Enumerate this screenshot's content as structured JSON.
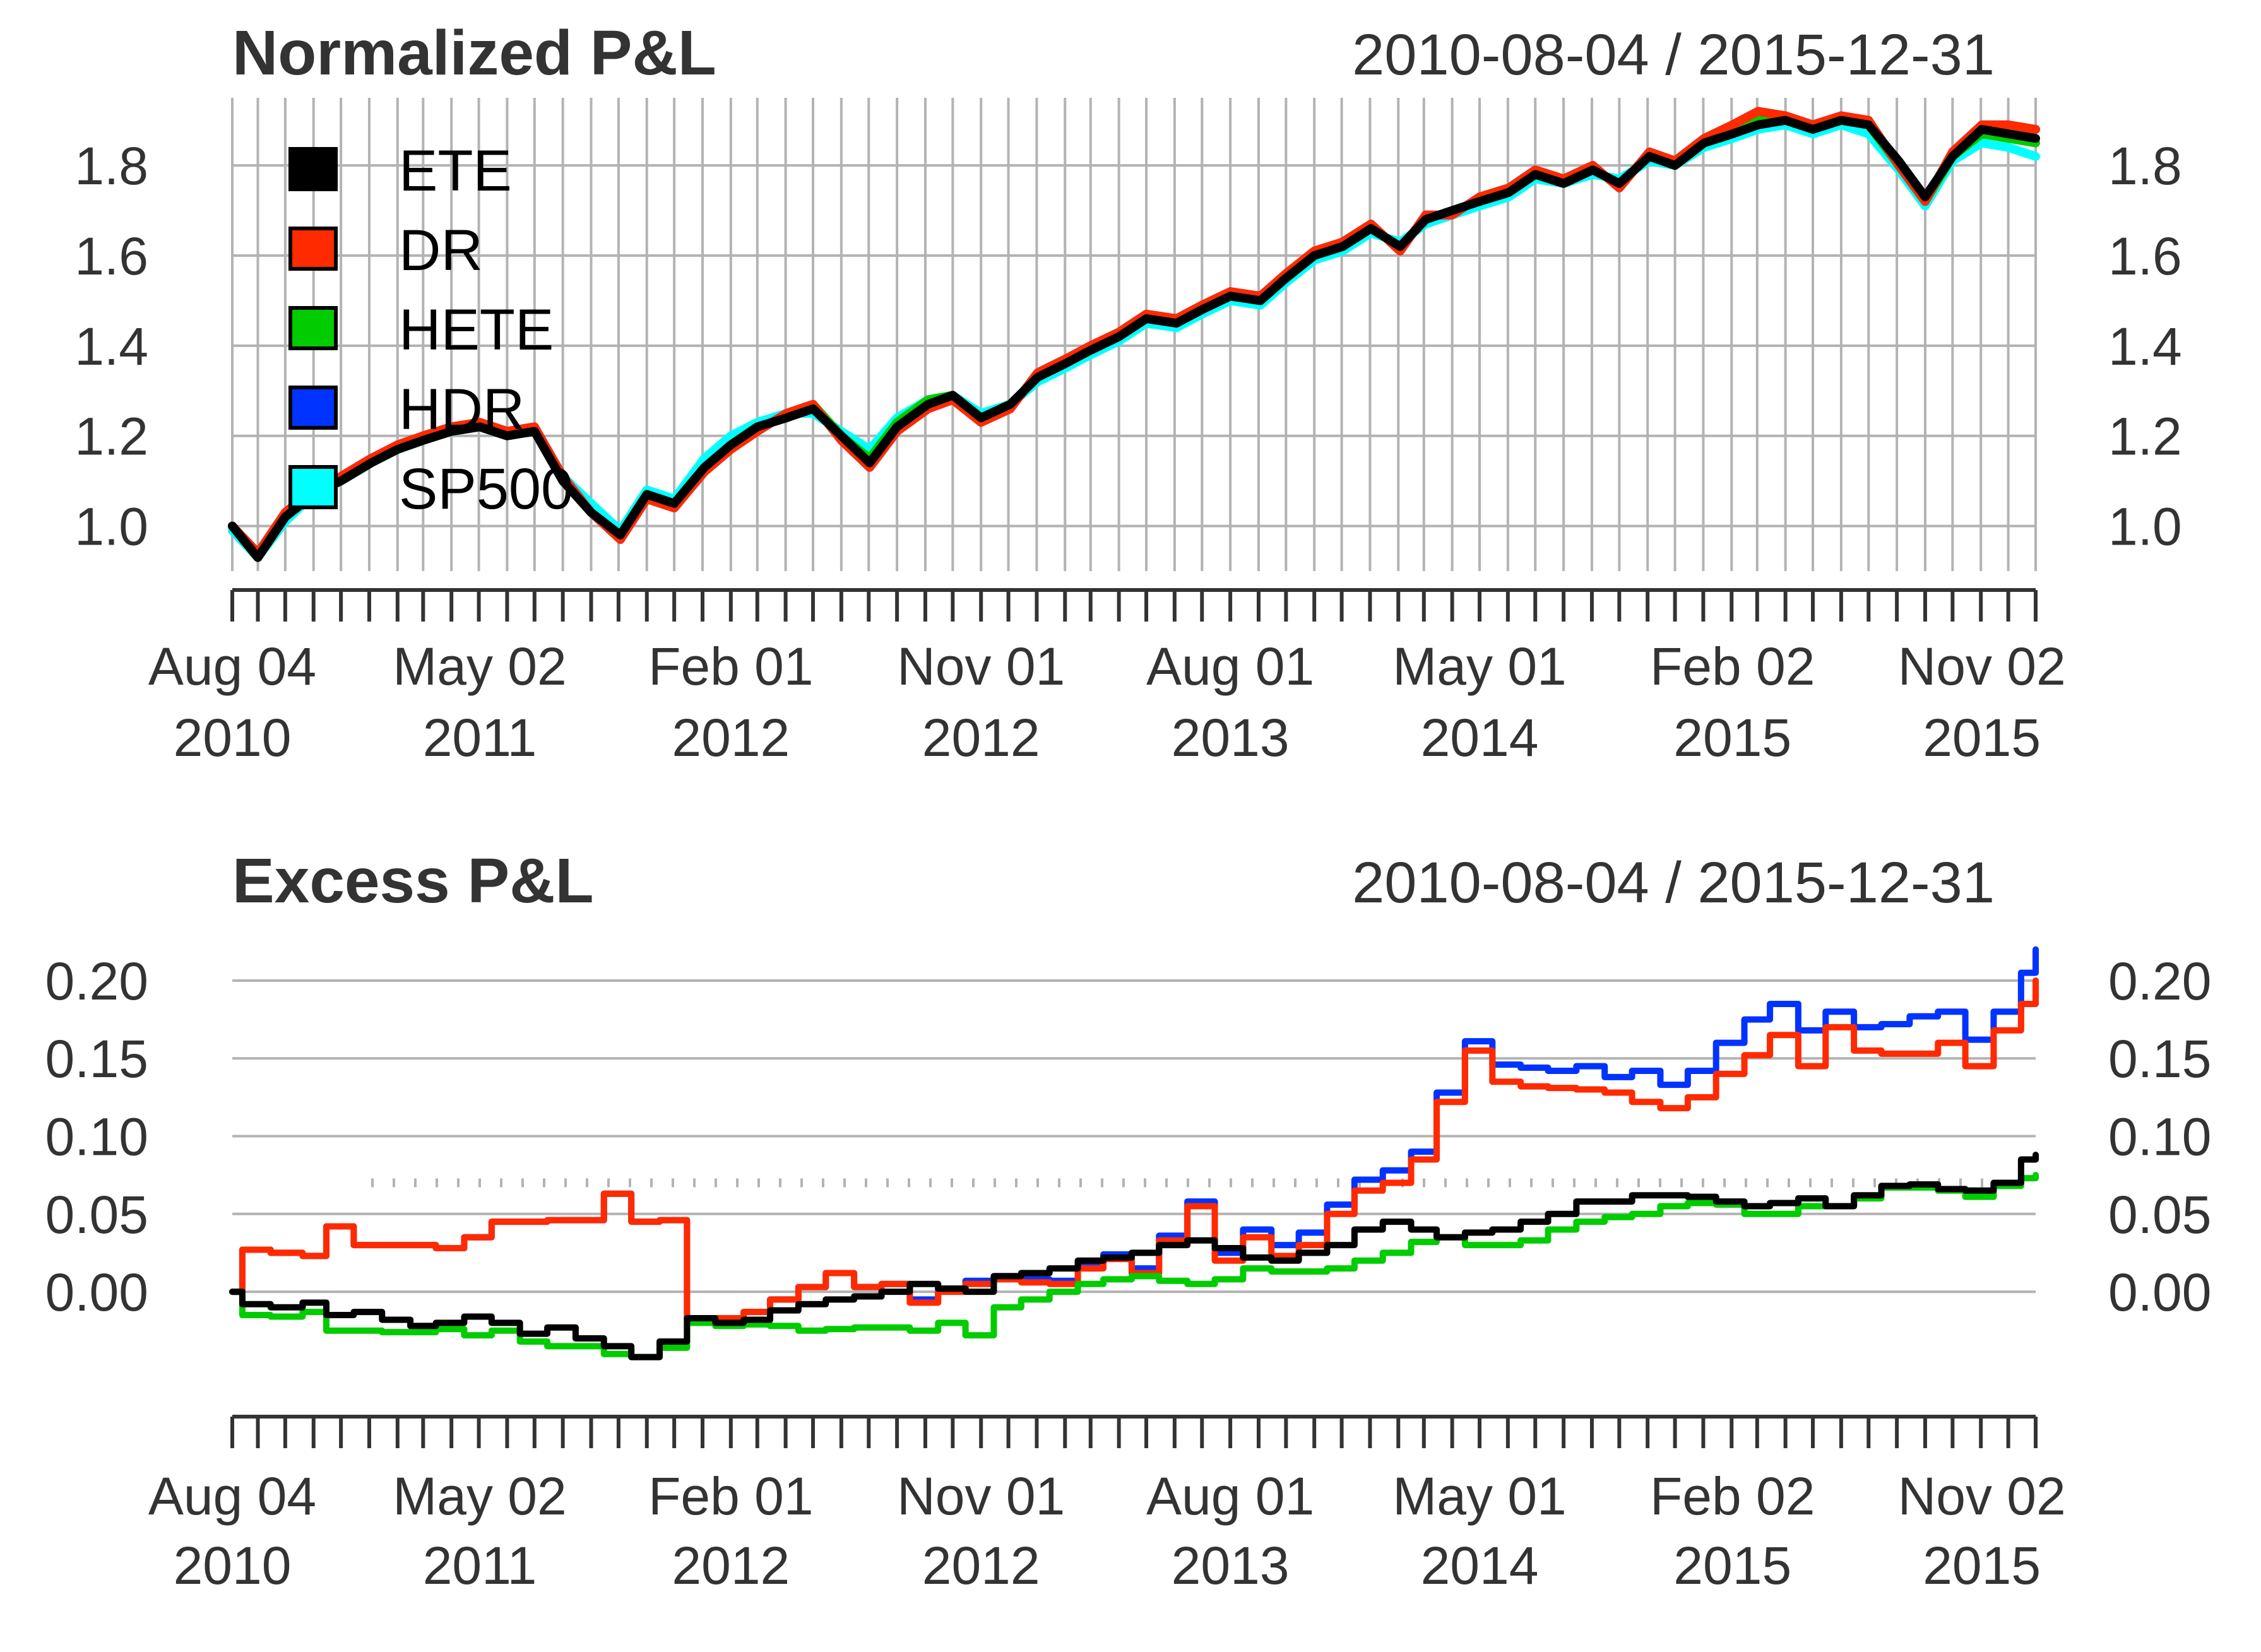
{
  "chart_data": [
    {
      "type": "line",
      "title": "Normalized P&L",
      "date_range": "2010-08-04 / 2015-12-31",
      "x_start": "2010-08-04",
      "x_end": "2015-12-31",
      "ylim": [
        0.9,
        1.95
      ],
      "yticks": [
        "1.0",
        "1.2",
        "1.4",
        "1.6",
        "1.8"
      ],
      "xticks": [
        {
          "date": "2010-08-04",
          "line1": "Aug 04",
          "line2": "2010"
        },
        {
          "date": "2011-05-02",
          "line1": "May 02",
          "line2": "2011"
        },
        {
          "date": "2012-02-01",
          "line1": "Feb 01",
          "line2": "2012"
        },
        {
          "date": "2012-11-01",
          "line1": "Nov 01",
          "line2": "2012"
        },
        {
          "date": "2013-08-01",
          "line1": "Aug 01",
          "line2": "2013"
        },
        {
          "date": "2014-05-01",
          "line1": "May 01",
          "line2": "2014"
        },
        {
          "date": "2015-02-02",
          "line1": "Feb 02",
          "line2": "2015"
        },
        {
          "date": "2015-11-02",
          "line1": "Nov 02",
          "line2": "2015"
        }
      ],
      "grid": "vertical-monthly-and-horizontal",
      "legend_position": "top-left",
      "x": [
        "2010-08-04",
        "2010-09-01",
        "2010-10-01",
        "2010-11-01",
        "2010-12-01",
        "2011-01-03",
        "2011-02-01",
        "2011-03-01",
        "2011-04-01",
        "2011-05-02",
        "2011-06-01",
        "2011-07-01",
        "2011-08-01",
        "2011-09-01",
        "2011-10-03",
        "2011-11-01",
        "2011-12-01",
        "2012-01-03",
        "2012-02-01",
        "2012-03-01",
        "2012-04-02",
        "2012-05-01",
        "2012-06-01",
        "2012-07-02",
        "2012-08-01",
        "2012-09-04",
        "2012-10-01",
        "2012-11-01",
        "2012-12-03",
        "2013-01-02",
        "2013-02-01",
        "2013-03-01",
        "2013-04-01",
        "2013-05-01",
        "2013-06-03",
        "2013-07-01",
        "2013-08-01",
        "2013-09-03",
        "2013-10-01",
        "2013-11-01",
        "2013-12-02",
        "2014-01-02",
        "2014-02-03",
        "2014-03-03",
        "2014-04-01",
        "2014-05-01",
        "2014-06-02",
        "2014-07-01",
        "2014-08-01",
        "2014-09-02",
        "2014-10-01",
        "2014-11-03",
        "2014-12-01",
        "2015-01-02",
        "2015-02-02",
        "2015-03-02",
        "2015-04-01",
        "2015-05-01",
        "2015-06-01",
        "2015-07-01",
        "2015-08-03",
        "2015-09-01",
        "2015-10-01",
        "2015-11-02",
        "2015-12-01",
        "2015-12-31"
      ],
      "series": [
        {
          "name": "ETE",
          "color": "#000000",
          "values": [
            1.0,
            0.93,
            1.02,
            1.07,
            1.1,
            1.14,
            1.17,
            1.19,
            1.21,
            1.22,
            1.2,
            1.21,
            1.1,
            1.03,
            0.98,
            1.07,
            1.05,
            1.13,
            1.18,
            1.22,
            1.24,
            1.26,
            1.2,
            1.14,
            1.22,
            1.27,
            1.29,
            1.24,
            1.27,
            1.33,
            1.36,
            1.39,
            1.42,
            1.46,
            1.45,
            1.48,
            1.51,
            1.5,
            1.55,
            1.6,
            1.62,
            1.66,
            1.62,
            1.68,
            1.7,
            1.72,
            1.74,
            1.78,
            1.76,
            1.79,
            1.76,
            1.82,
            1.8,
            1.85,
            1.87,
            1.89,
            1.9,
            1.88,
            1.9,
            1.89,
            1.81,
            1.73,
            1.82,
            1.88,
            1.87,
            1.86
          ]
        },
        {
          "name": "DR",
          "color": "#ff2a00",
          "values": [
            1.0,
            0.94,
            1.03,
            1.08,
            1.11,
            1.15,
            1.18,
            1.2,
            1.22,
            1.23,
            1.21,
            1.22,
            1.11,
            1.03,
            0.97,
            1.06,
            1.04,
            1.12,
            1.17,
            1.21,
            1.25,
            1.27,
            1.19,
            1.13,
            1.21,
            1.26,
            1.28,
            1.23,
            1.26,
            1.34,
            1.37,
            1.4,
            1.43,
            1.47,
            1.46,
            1.49,
            1.52,
            1.51,
            1.56,
            1.61,
            1.63,
            1.67,
            1.61,
            1.69,
            1.69,
            1.73,
            1.75,
            1.79,
            1.77,
            1.8,
            1.75,
            1.83,
            1.81,
            1.86,
            1.89,
            1.92,
            1.91,
            1.89,
            1.91,
            1.9,
            1.8,
            1.72,
            1.83,
            1.89,
            1.89,
            1.88
          ]
        },
        {
          "name": "HETE",
          "color": "#00cc00",
          "values": [
            1.0,
            0.93,
            1.02,
            1.07,
            1.1,
            1.14,
            1.17,
            1.19,
            1.21,
            1.22,
            1.2,
            1.21,
            1.1,
            1.03,
            0.98,
            1.07,
            1.05,
            1.13,
            1.18,
            1.22,
            1.24,
            1.27,
            1.2,
            1.15,
            1.23,
            1.28,
            1.29,
            1.24,
            1.27,
            1.33,
            1.36,
            1.39,
            1.42,
            1.46,
            1.45,
            1.48,
            1.51,
            1.5,
            1.55,
            1.6,
            1.62,
            1.66,
            1.62,
            1.68,
            1.7,
            1.72,
            1.74,
            1.78,
            1.76,
            1.79,
            1.76,
            1.82,
            1.8,
            1.85,
            1.87,
            1.9,
            1.91,
            1.88,
            1.9,
            1.89,
            1.8,
            1.72,
            1.82,
            1.87,
            1.86,
            1.85
          ]
        },
        {
          "name": "HDR",
          "color": "#0033ff",
          "values": [
            1.0,
            0.94,
            1.03,
            1.08,
            1.11,
            1.15,
            1.18,
            1.2,
            1.22,
            1.23,
            1.21,
            1.22,
            1.11,
            1.03,
            0.97,
            1.06,
            1.04,
            1.12,
            1.17,
            1.21,
            1.25,
            1.27,
            1.19,
            1.13,
            1.21,
            1.26,
            1.28,
            1.23,
            1.26,
            1.34,
            1.37,
            1.4,
            1.43,
            1.47,
            1.46,
            1.49,
            1.52,
            1.51,
            1.56,
            1.61,
            1.63,
            1.67,
            1.61,
            1.69,
            1.69,
            1.73,
            1.75,
            1.79,
            1.77,
            1.8,
            1.75,
            1.83,
            1.81,
            1.86,
            1.89,
            1.92,
            1.91,
            1.89,
            1.91,
            1.9,
            1.8,
            1.72,
            1.83,
            1.89,
            1.89,
            1.88
          ]
        },
        {
          "name": "SP500",
          "color": "#00ffff",
          "values": [
            0.99,
            0.93,
            1.01,
            1.07,
            1.1,
            1.14,
            1.17,
            1.19,
            1.21,
            1.22,
            1.2,
            1.21,
            1.11,
            1.05,
            0.99,
            1.08,
            1.06,
            1.15,
            1.2,
            1.23,
            1.25,
            1.25,
            1.21,
            1.17,
            1.24,
            1.28,
            1.29,
            1.25,
            1.27,
            1.32,
            1.35,
            1.38,
            1.41,
            1.45,
            1.44,
            1.47,
            1.5,
            1.49,
            1.54,
            1.59,
            1.61,
            1.65,
            1.63,
            1.67,
            1.69,
            1.71,
            1.73,
            1.77,
            1.76,
            1.78,
            1.77,
            1.81,
            1.8,
            1.84,
            1.86,
            1.88,
            1.89,
            1.87,
            1.89,
            1.87,
            1.79,
            1.71,
            1.81,
            1.85,
            1.84,
            1.82
          ]
        }
      ]
    },
    {
      "type": "line",
      "title": "Excess P&L",
      "date_range": "2010-08-04 / 2015-12-31",
      "x_start": "2010-08-04",
      "x_end": "2015-12-31",
      "ylim": [
        -0.06,
        0.23
      ],
      "yticks": [
        "0.00",
        "0.05",
        "0.10",
        "0.15",
        "0.20"
      ],
      "xticks": [
        {
          "date": "2010-08-04",
          "line1": "Aug 04",
          "line2": "2010"
        },
        {
          "date": "2011-05-02",
          "line1": "May 02",
          "line2": "2011"
        },
        {
          "date": "2012-02-01",
          "line1": "Feb 01",
          "line2": "2012"
        },
        {
          "date": "2012-11-01",
          "line1": "Nov 01",
          "line2": "2012"
        },
        {
          "date": "2013-08-01",
          "line1": "Aug 01",
          "line2": "2013"
        },
        {
          "date": "2014-05-01",
          "line1": "May 01",
          "line2": "2014"
        },
        {
          "date": "2015-02-02",
          "line1": "Feb 02",
          "line2": "2015"
        },
        {
          "date": "2015-11-02",
          "line1": "Nov 02",
          "line2": "2015"
        }
      ],
      "reference_dotted_level": 0.07,
      "grid": "horizontal",
      "step": true,
      "x": [
        "2010-08-04",
        "2010-08-15",
        "2010-09-15",
        "2010-10-20",
        "2010-11-15",
        "2010-12-15",
        "2011-01-15",
        "2011-02-15",
        "2011-03-15",
        "2011-04-15",
        "2011-05-15",
        "2011-06-15",
        "2011-07-15",
        "2011-08-15",
        "2011-09-15",
        "2011-10-15",
        "2011-11-15",
        "2011-12-15",
        "2012-01-15",
        "2012-02-15",
        "2012-03-15",
        "2012-04-15",
        "2012-05-15",
        "2012-06-15",
        "2012-07-15",
        "2012-08-15",
        "2012-09-15",
        "2012-10-15",
        "2012-11-15",
        "2012-12-15",
        "2013-01-15",
        "2013-02-15",
        "2013-03-15",
        "2013-04-15",
        "2013-05-15",
        "2013-06-15",
        "2013-07-15",
        "2013-08-15",
        "2013-09-15",
        "2013-10-15",
        "2013-11-15",
        "2013-12-15",
        "2014-01-15",
        "2014-02-15",
        "2014-03-15",
        "2014-04-15",
        "2014-05-15",
        "2014-06-15",
        "2014-07-15",
        "2014-08-15",
        "2014-09-15",
        "2014-10-15",
        "2014-11-15",
        "2014-12-15",
        "2015-01-15",
        "2015-02-15",
        "2015-03-15",
        "2015-04-15",
        "2015-05-15",
        "2015-06-15",
        "2015-07-15",
        "2015-08-15",
        "2015-09-15",
        "2015-10-15",
        "2015-11-15",
        "2015-12-15",
        "2015-12-31"
      ],
      "series": [
        {
          "name": "DR",
          "color": "#ff2a00",
          "values": [
            0.0,
            0.027,
            0.025,
            0.023,
            0.042,
            0.03,
            0.03,
            0.03,
            0.028,
            0.035,
            0.045,
            0.045,
            0.046,
            0.046,
            0.063,
            0.045,
            0.046,
            -0.018,
            -0.017,
            -0.013,
            -0.005,
            0.003,
            0.012,
            0.003,
            0.005,
            -0.007,
            0.0,
            0.005,
            0.008,
            0.006,
            0.005,
            0.015,
            0.021,
            0.012,
            0.033,
            0.055,
            0.02,
            0.035,
            0.023,
            0.03,
            0.05,
            0.065,
            0.07,
            0.085,
            0.122,
            0.155,
            0.135,
            0.132,
            0.131,
            0.13,
            0.128,
            0.122,
            0.118,
            0.125,
            0.14,
            0.152,
            0.165,
            0.145,
            0.17,
            0.155,
            0.153,
            0.153,
            0.16,
            0.145,
            0.168,
            0.185,
            0.2
          ]
        },
        {
          "name": "HDR",
          "color": "#0033ff",
          "values": [
            0.0,
            0.027,
            0.025,
            0.023,
            0.042,
            0.03,
            0.03,
            0.03,
            0.028,
            0.035,
            0.045,
            0.045,
            0.046,
            0.046,
            0.063,
            0.045,
            0.046,
            -0.018,
            -0.017,
            -0.013,
            -0.005,
            0.003,
            0.012,
            0.003,
            0.005,
            -0.005,
            0.002,
            0.007,
            0.01,
            0.008,
            0.007,
            0.017,
            0.024,
            0.015,
            0.036,
            0.058,
            0.025,
            0.04,
            0.03,
            0.038,
            0.056,
            0.072,
            0.078,
            0.09,
            0.128,
            0.161,
            0.146,
            0.144,
            0.142,
            0.145,
            0.138,
            0.142,
            0.133,
            0.142,
            0.16,
            0.175,
            0.185,
            0.168,
            0.18,
            0.17,
            0.172,
            0.177,
            0.18,
            0.162,
            0.18,
            0.205,
            0.22
          ]
        },
        {
          "name": "HETE",
          "color": "#00cc00",
          "values": [
            0.0,
            -0.015,
            -0.016,
            -0.013,
            -0.025,
            -0.025,
            -0.026,
            -0.026,
            -0.024,
            -0.028,
            -0.025,
            -0.032,
            -0.035,
            -0.035,
            -0.04,
            -0.042,
            -0.036,
            -0.02,
            -0.022,
            -0.021,
            -0.022,
            -0.025,
            -0.024,
            -0.023,
            -0.023,
            -0.025,
            -0.02,
            -0.028,
            -0.01,
            -0.005,
            0.0,
            0.005,
            0.008,
            0.01,
            0.007,
            0.005,
            0.008,
            0.015,
            0.013,
            0.013,
            0.015,
            0.02,
            0.025,
            0.032,
            0.035,
            0.03,
            0.03,
            0.033,
            0.04,
            0.045,
            0.048,
            0.05,
            0.055,
            0.057,
            0.056,
            0.05,
            0.05,
            0.055,
            0.055,
            0.06,
            0.067,
            0.067,
            0.065,
            0.061,
            0.068,
            0.073,
            0.075
          ]
        },
        {
          "name": "ETE",
          "color": "#000000",
          "values": [
            0.0,
            -0.008,
            -0.01,
            -0.007,
            -0.015,
            -0.013,
            -0.018,
            -0.022,
            -0.02,
            -0.016,
            -0.02,
            -0.027,
            -0.023,
            -0.03,
            -0.035,
            -0.042,
            -0.032,
            -0.017,
            -0.02,
            -0.018,
            -0.012,
            -0.008,
            -0.005,
            -0.003,
            0.0,
            0.005,
            0.002,
            0.0,
            0.01,
            0.012,
            0.015,
            0.02,
            0.022,
            0.025,
            0.03,
            0.033,
            0.028,
            0.022,
            0.02,
            0.025,
            0.03,
            0.04,
            0.045,
            0.04,
            0.035,
            0.038,
            0.04,
            0.045,
            0.05,
            0.058,
            0.058,
            0.062,
            0.062,
            0.061,
            0.058,
            0.055,
            0.057,
            0.06,
            0.055,
            0.062,
            0.068,
            0.069,
            0.066,
            0.065,
            0.07,
            0.085,
            0.088
          ]
        }
      ]
    }
  ]
}
